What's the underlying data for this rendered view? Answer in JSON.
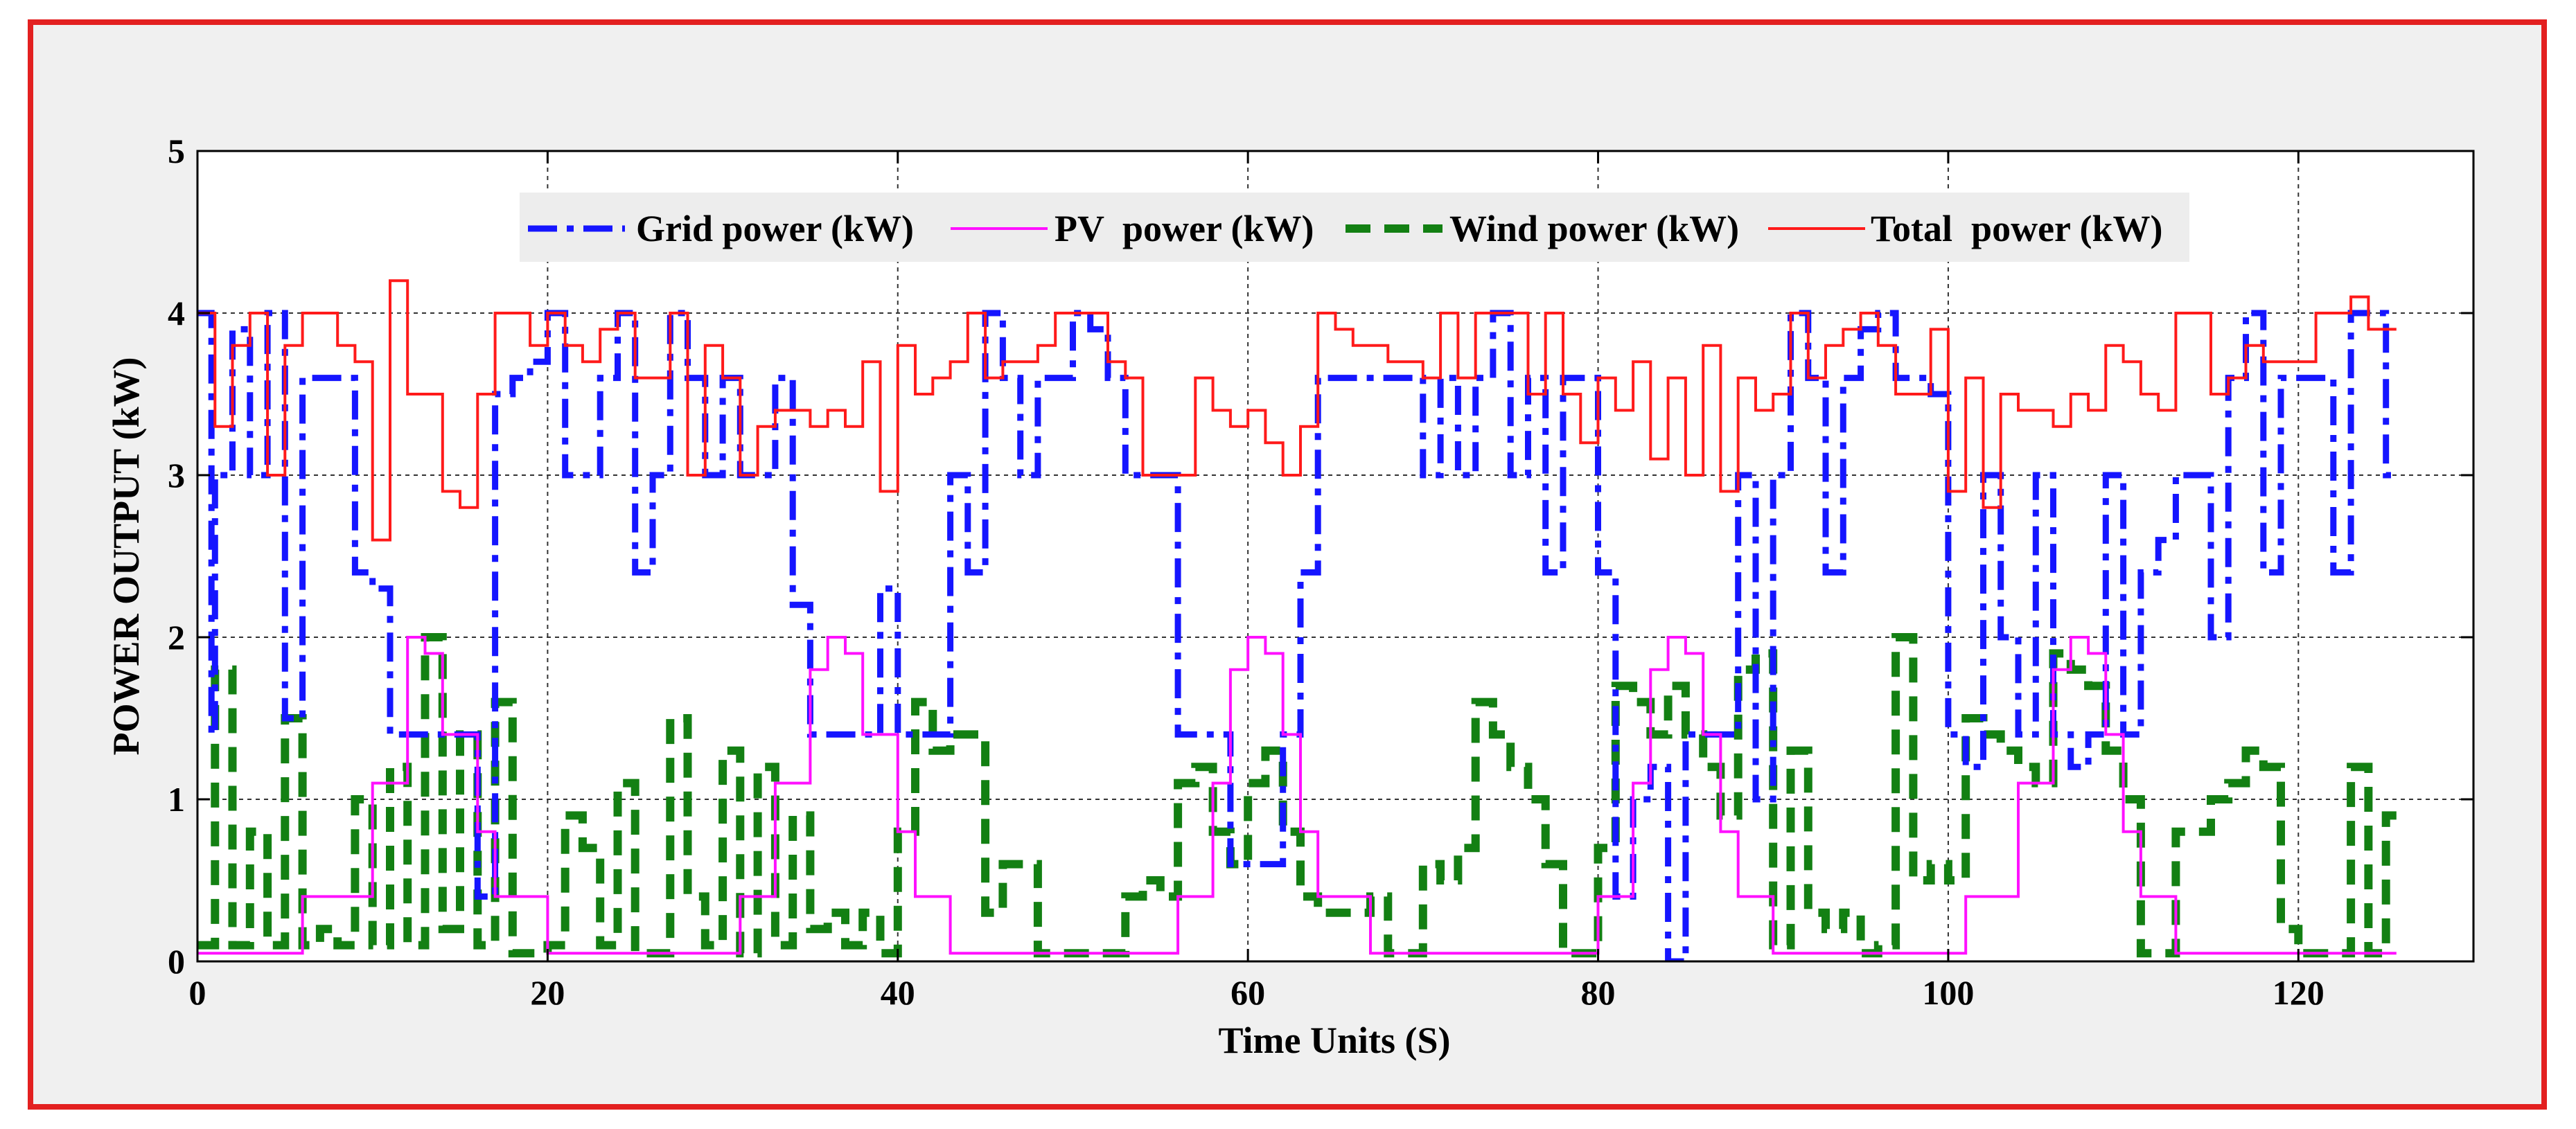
{
  "chart_data": {
    "type": "line",
    "title": "",
    "xlabel": "Time Units (S)",
    "ylabel": "POWER OUTPUT (kW)",
    "xlim": [
      0,
      130
    ],
    "ylim": [
      0,
      5
    ],
    "xticks": [
      "0",
      "20",
      "40",
      "60",
      "80",
      "100",
      "120"
    ],
    "yticks": [
      "0",
      "1",
      "2",
      "3",
      "4",
      "5"
    ],
    "grid": true,
    "legend_position": "top-center",
    "series": [
      {
        "name": "Grid power (kW)",
        "color": "#1515ff",
        "style": "dash-dot",
        "x": [
          0,
          0.8,
          1,
          2,
          3,
          4,
          5,
          6,
          8,
          9,
          10,
          11,
          12,
          13,
          14,
          15,
          16,
          17,
          18,
          19,
          20,
          21,
          22,
          23,
          24,
          25,
          26,
          27,
          28,
          29,
          30,
          31,
          32,
          33,
          34,
          35,
          36,
          37,
          38,
          39,
          40,
          41,
          42,
          43,
          44,
          45,
          46,
          47,
          48,
          49,
          50,
          51,
          52,
          53,
          54,
          55,
          56,
          57,
          58,
          59,
          60,
          61,
          62,
          63,
          64,
          65,
          66,
          67,
          68,
          69,
          70,
          71,
          72,
          73,
          74,
          75,
          76,
          77,
          78,
          79,
          80,
          81,
          82,
          83,
          84,
          85,
          86,
          87,
          88,
          89,
          90,
          91,
          92,
          93,
          94,
          95,
          96,
          97,
          98,
          99,
          100,
          101,
          102,
          103,
          104,
          105,
          106,
          107,
          108,
          109,
          110,
          111,
          112,
          113,
          114,
          115,
          116,
          117,
          118,
          119,
          120,
          121,
          122,
          123,
          124,
          125
        ],
        "values": [
          4.0,
          1.4,
          3.0,
          3.9,
          3.0,
          4.0,
          1.5,
          3.6,
          3.6,
          2.4,
          2.3,
          1.4,
          1.4,
          1.4,
          1.4,
          1.4,
          0.4,
          3.5,
          3.6,
          3.7,
          4.0,
          3.0,
          3.0,
          3.6,
          4.0,
          2.4,
          3.0,
          4.0,
          3.6,
          3.0,
          3.6,
          3.0,
          3.0,
          3.6,
          2.2,
          1.4,
          1.4,
          1.4,
          1.4,
          2.3,
          1.4,
          1.4,
          1.4,
          3.0,
          2.4,
          4.0,
          3.6,
          3.0,
          3.6,
          3.6,
          4.0,
          3.9,
          3.6,
          3.0,
          3.0,
          3.0,
          1.4,
          1.4,
          1.4,
          0.6,
          0.6,
          0.6,
          1.4,
          2.4,
          3.6,
          3.6,
          3.6,
          3.6,
          3.6,
          3.6,
          3.0,
          3.6,
          3.0,
          3.6,
          4.0,
          3.0,
          3.6,
          2.4,
          3.6,
          3.6,
          2.4,
          0.4,
          1.0,
          1.2,
          0.0,
          1.4,
          1.4,
          1.4,
          3.0,
          1.0,
          3.0,
          4.0,
          3.6,
          2.4,
          3.6,
          3.9,
          4.0,
          3.6,
          3.6,
          3.5,
          1.4,
          1.2,
          3.0,
          2.0,
          1.4,
          3.0,
          1.4,
          1.2,
          1.4,
          3.0,
          1.4,
          2.4,
          2.6,
          3.0,
          3.0,
          2.0,
          3.6,
          4.0,
          2.4,
          3.6,
          3.6,
          3.6,
          2.4,
          4.0,
          4.0,
          3.0
        ]
      },
      {
        "name": "PV  power (kW)",
        "color": "#ff10ff",
        "style": "solid",
        "x": [
          0,
          5,
          6,
          9,
          10,
          11,
          12,
          13,
          14,
          15,
          16,
          17,
          19,
          20,
          25,
          30,
          31,
          32,
          33,
          34,
          35,
          36,
          37,
          38,
          39,
          40,
          41,
          42,
          43,
          44,
          50,
          55,
          56,
          57,
          58,
          59,
          60,
          61,
          62,
          63,
          64,
          65,
          66,
          67,
          68,
          69,
          70,
          75,
          80,
          81,
          82,
          83,
          84,
          85,
          86,
          87,
          88,
          89,
          90,
          91,
          95,
          100,
          101,
          102,
          103,
          104,
          105,
          106,
          107,
          108,
          109,
          110,
          111,
          112,
          113,
          114,
          115,
          120,
          125
        ],
        "values": [
          0.05,
          0.05,
          0.4,
          0.4,
          1.1,
          1.1,
          2.0,
          1.9,
          1.4,
          1.4,
          0.8,
          0.4,
          0.4,
          0.05,
          0.05,
          0.05,
          0.4,
          0.4,
          1.1,
          1.1,
          1.8,
          2.0,
          1.9,
          1.4,
          1.4,
          0.8,
          0.4,
          0.4,
          0.05,
          0.05,
          0.05,
          0.05,
          0.4,
          0.4,
          1.1,
          1.8,
          2.0,
          1.9,
          1.4,
          0.8,
          0.4,
          0.4,
          0.4,
          0.05,
          0.05,
          0.05,
          0.05,
          0.05,
          0.4,
          0.4,
          1.1,
          1.8,
          2.0,
          1.9,
          1.4,
          0.8,
          0.4,
          0.4,
          0.05,
          0.05,
          0.05,
          0.05,
          0.4,
          0.4,
          0.4,
          1.1,
          1.1,
          1.8,
          2.0,
          1.9,
          1.4,
          0.8,
          0.4,
          0.4,
          0.05,
          0.05,
          0.05,
          0.05,
          0.05
        ]
      },
      {
        "name": "Wind power (kW)",
        "color": "#138013",
        "style": "dashed",
        "x": [
          0,
          1,
          2,
          3,
          4,
          5,
          6,
          7,
          8,
          9,
          10,
          11,
          12,
          13,
          14,
          15,
          16,
          17,
          18,
          19,
          20,
          21,
          22,
          23,
          24,
          25,
          26,
          27,
          28,
          29,
          30,
          31,
          32,
          33,
          34,
          35,
          36,
          37,
          38,
          39,
          40,
          41,
          42,
          43,
          44,
          45,
          46,
          47,
          48,
          49,
          50,
          51,
          52,
          53,
          54,
          55,
          56,
          57,
          58,
          59,
          60,
          61,
          62,
          63,
          64,
          65,
          66,
          67,
          68,
          69,
          70,
          71,
          72,
          73,
          74,
          75,
          76,
          77,
          78,
          79,
          80,
          81,
          82,
          83,
          84,
          85,
          86,
          87,
          88,
          89,
          90,
          91,
          92,
          93,
          94,
          95,
          96,
          97,
          98,
          99,
          100,
          101,
          102,
          103,
          104,
          105,
          106,
          107,
          108,
          109,
          110,
          111,
          112,
          113,
          114,
          115,
          116,
          117,
          118,
          119,
          120,
          121,
          122,
          123,
          124,
          125
        ],
        "values": [
          0.1,
          1.8,
          0.1,
          0.8,
          0.1,
          1.5,
          0.1,
          0.2,
          0.1,
          1.0,
          0.1,
          1.2,
          0.1,
          2.0,
          0.2,
          1.4,
          0.1,
          1.6,
          0.05,
          0.05,
          0.1,
          0.9,
          0.7,
          0.1,
          1.1,
          0.05,
          0.05,
          1.5,
          0.4,
          0.1,
          1.3,
          0.05,
          1.2,
          0.1,
          0.9,
          0.2,
          0.3,
          0.1,
          0.3,
          0.05,
          0.8,
          1.6,
          1.3,
          1.4,
          1.4,
          0.3,
          0.6,
          0.6,
          0.05,
          0.05,
          0.05,
          0.05,
          0.05,
          0.4,
          0.5,
          0.4,
          1.1,
          1.2,
          0.8,
          0.6,
          1.1,
          1.3,
          0.8,
          0.4,
          0.3,
          0.3,
          0.3,
          0.4,
          0.05,
          0.05,
          0.6,
          0.5,
          0.7,
          1.6,
          1.4,
          1.2,
          1.0,
          0.6,
          0.05,
          0.05,
          0.7,
          1.7,
          1.6,
          1.4,
          1.7,
          1.4,
          1.2,
          0.9,
          1.8,
          1.9,
          0.1,
          1.3,
          0.3,
          0.2,
          0.3,
          0.05,
          0.1,
          2.0,
          0.5,
          0.6,
          0.5,
          1.5,
          1.4,
          1.3,
          1.2,
          1.1,
          1.9,
          1.8,
          1.7,
          1.3,
          1.0,
          0.05,
          0.05,
          0.8,
          0.8,
          1.0,
          1.1,
          1.3,
          1.2,
          0.2,
          0.05,
          0.05,
          0.05,
          1.2,
          0.05,
          0.9
        ]
      },
      {
        "name": "Total  power (kW)",
        "color": "#ff1a1a",
        "style": "solid",
        "x": [
          0,
          1,
          2,
          3,
          4,
          5,
          6,
          7,
          8,
          9,
          10,
          11,
          12,
          13,
          14,
          15,
          16,
          17,
          18,
          19,
          20,
          21,
          22,
          23,
          24,
          25,
          26,
          27,
          28,
          29,
          30,
          31,
          32,
          33,
          34,
          35,
          36,
          37,
          38,
          39,
          40,
          41,
          42,
          43,
          44,
          45,
          46,
          47,
          48,
          49,
          50,
          51,
          52,
          53,
          54,
          55,
          56,
          57,
          58,
          59,
          60,
          61,
          62,
          63,
          64,
          65,
          66,
          67,
          68,
          69,
          70,
          71,
          72,
          73,
          74,
          75,
          76,
          77,
          78,
          79,
          80,
          81,
          82,
          83,
          84,
          85,
          86,
          87,
          88,
          89,
          90,
          91,
          92,
          93,
          94,
          95,
          96,
          97,
          98,
          99,
          100,
          101,
          102,
          103,
          104,
          105,
          106,
          107,
          108,
          109,
          110,
          111,
          112,
          113,
          114,
          115,
          116,
          117,
          118,
          119,
          120,
          121,
          122,
          123,
          124,
          125
        ],
        "values": [
          4.0,
          3.3,
          3.8,
          4.0,
          3.0,
          3.8,
          4.0,
          4.0,
          3.8,
          3.7,
          2.6,
          4.2,
          3.5,
          3.5,
          2.9,
          2.8,
          3.5,
          4.0,
          4.0,
          3.8,
          4.0,
          3.8,
          3.7,
          3.9,
          4.0,
          3.6,
          3.6,
          4.0,
          3.0,
          3.8,
          3.6,
          3.0,
          3.3,
          3.4,
          3.4,
          3.3,
          3.4,
          3.3,
          3.7,
          2.9,
          3.8,
          3.5,
          3.6,
          3.7,
          4.0,
          3.6,
          3.7,
          3.7,
          3.8,
          4.0,
          4.0,
          4.0,
          3.7,
          3.6,
          3.0,
          3.0,
          3.0,
          3.6,
          3.4,
          3.3,
          3.4,
          3.2,
          3.0,
          3.3,
          4.0,
          3.9,
          3.8,
          3.8,
          3.7,
          3.7,
          3.6,
          4.0,
          3.6,
          4.0,
          4.0,
          4.0,
          3.5,
          4.0,
          3.5,
          3.2,
          3.6,
          3.4,
          3.7,
          3.1,
          3.6,
          3.0,
          3.8,
          2.9,
          3.6,
          3.4,
          3.5,
          4.0,
          3.6,
          3.8,
          3.9,
          4.0,
          3.8,
          3.5,
          3.5,
          3.9,
          2.9,
          3.6,
          2.8,
          3.5,
          3.4,
          3.4,
          3.3,
          3.5,
          3.4,
          3.8,
          3.7,
          3.5,
          3.4,
          4.0,
          4.0,
          3.5,
          3.6,
          3.8,
          3.7,
          3.7,
          3.7,
          4.0,
          4.0,
          4.1,
          3.9,
          3.9
        ]
      }
    ]
  }
}
